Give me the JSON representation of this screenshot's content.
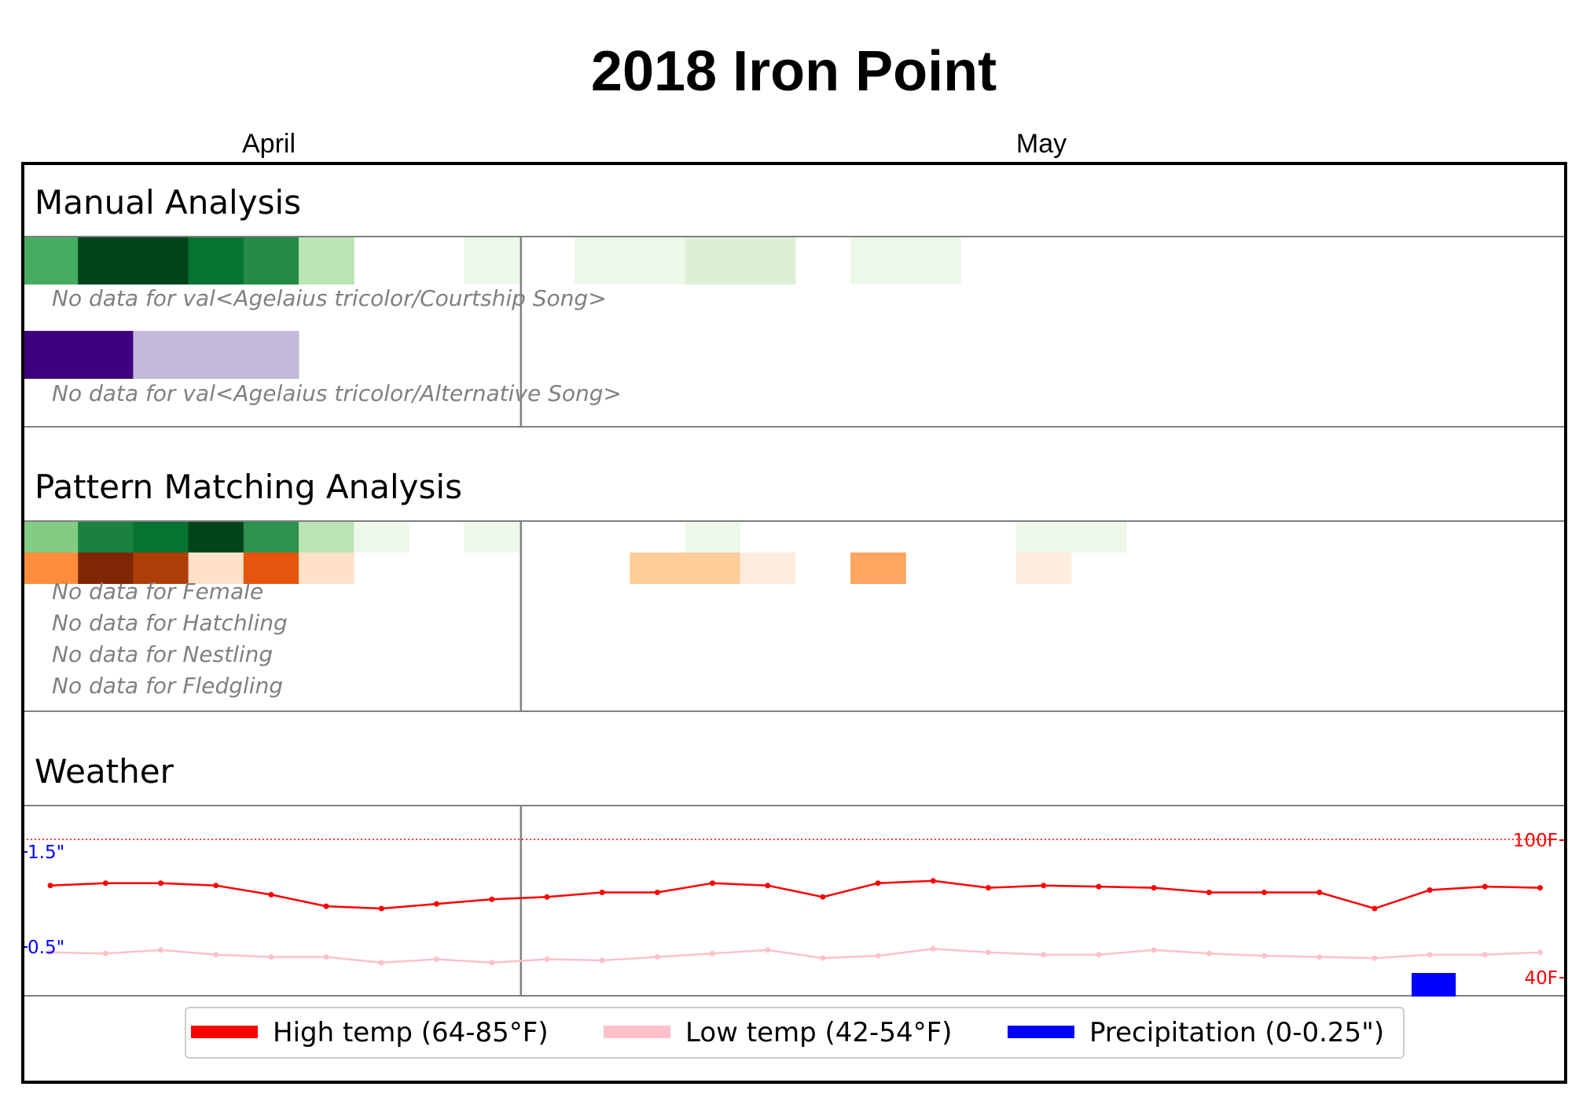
{
  "chart_data": {
    "type": "heatmap",
    "title": "2018 Iron Point",
    "months": [
      "April",
      "May"
    ],
    "dates": [
      "2018-04-01",
      "2018-04-03",
      "2018-04-05",
      "2018-04-07",
      "2018-04-09",
      "2018-04-11",
      "2018-04-13",
      "2018-04-15",
      "2018-04-17",
      "2018-04-19",
      "2018-04-21",
      "2018-04-23",
      "2018-04-25",
      "2018-04-27",
      "2018-04-29",
      "2018-05-01",
      "2018-05-03",
      "2018-05-05",
      "2018-05-07",
      "2018-05-09",
      "2018-05-11",
      "2018-05-13",
      "2018-05-15",
      "2018-05-17",
      "2018-05-19",
      "2018-05-21",
      "2018-05-23",
      "2018-05-25"
    ],
    "sections": [
      {
        "title": "Manual Analysis",
        "rows": [
          {
            "palette": "green",
            "values": [
              0.55,
              1.0,
              1.0,
              0.85,
              0.7,
              0.25,
              0,
              0,
              0.05,
              0,
              0.05,
              0.05,
              0.1,
              0.1,
              0,
              0.05,
              0.05,
              0,
              0,
              0,
              0,
              0,
              0,
              0,
              0,
              0,
              0,
              0
            ]
          },
          {
            "nodata": "No data for val<Agelaius tricolor/Courtship Song>"
          },
          {
            "palette": "purple",
            "values": [
              1.0,
              1.0,
              0.15,
              0.15,
              0.15,
              0,
              0,
              0,
              0,
              0,
              0,
              0,
              0,
              0,
              0,
              0,
              0,
              0,
              0,
              0,
              0,
              0,
              0,
              0,
              0,
              0,
              0,
              0
            ]
          },
          {
            "nodata": "No data for val<Agelaius tricolor/Alternative Song>"
          }
        ]
      },
      {
        "title": "Pattern Matching Analysis",
        "rows": [
          {
            "palette": "green",
            "values": [
              0.4,
              0.75,
              0.85,
              1.0,
              0.65,
              0.25,
              0.05,
              0,
              0.05,
              0,
              0,
              0,
              0.05,
              0,
              0,
              0,
              0,
              0,
              0.05,
              0.05,
              0,
              0,
              0,
              0,
              0,
              0,
              0,
              0
            ]
          },
          {
            "palette": "orange",
            "values": [
              0.45,
              1.0,
              0.8,
              0.15,
              0.65,
              0.15,
              0,
              0,
              0,
              0,
              0,
              0.25,
              0.25,
              0.05,
              0,
              0.35,
              0,
              0,
              0.05,
              0,
              0,
              0,
              0,
              0,
              0,
              0,
              0,
              0
            ]
          },
          {
            "nodata": "No data for Female"
          },
          {
            "nodata": "No data for Hatchling"
          },
          {
            "nodata": "No data for Nestling"
          },
          {
            "nodata": "No data for Fledgling"
          }
        ]
      },
      {
        "title": "Weather",
        "high_temp_f": [
          80,
          81,
          81,
          80,
          76,
          71,
          70,
          72,
          74,
          75,
          77,
          77,
          81,
          80,
          75,
          81,
          82,
          79,
          80,
          79.5,
          79,
          77,
          77,
          77,
          70,
          78,
          79.5,
          79
        ],
        "low_temp_f": [
          51,
          50.5,
          52,
          50,
          49,
          49,
          46.5,
          48,
          46.5,
          48,
          47.5,
          49,
          50.5,
          52,
          48.5,
          49.5,
          52.5,
          51,
          50,
          50,
          52,
          50.5,
          49.5,
          49,
          48.5,
          50,
          50,
          51
        ],
        "precip_in": [
          0,
          0,
          0,
          0,
          0,
          0,
          0,
          0,
          0,
          0,
          0,
          0,
          0,
          0,
          0,
          0,
          0,
          0,
          0,
          0,
          0,
          0,
          0,
          0,
          0,
          0.25,
          0,
          0
        ],
        "precip_axis_labels": [
          "1.5\"",
          "0.5\""
        ],
        "temp_axis_labels": [
          "100F",
          "40F"
        ],
        "temp_range_f": [
          40,
          100
        ]
      }
    ],
    "legend": [
      {
        "label": "High temp (64-85°F)",
        "color": "#ff0000"
      },
      {
        "label": "Low temp (42-54°F)",
        "color": "#ffc0cb"
      },
      {
        "label": "Precipitation (0-0.25\")",
        "color": "#0000ff"
      }
    ]
  }
}
